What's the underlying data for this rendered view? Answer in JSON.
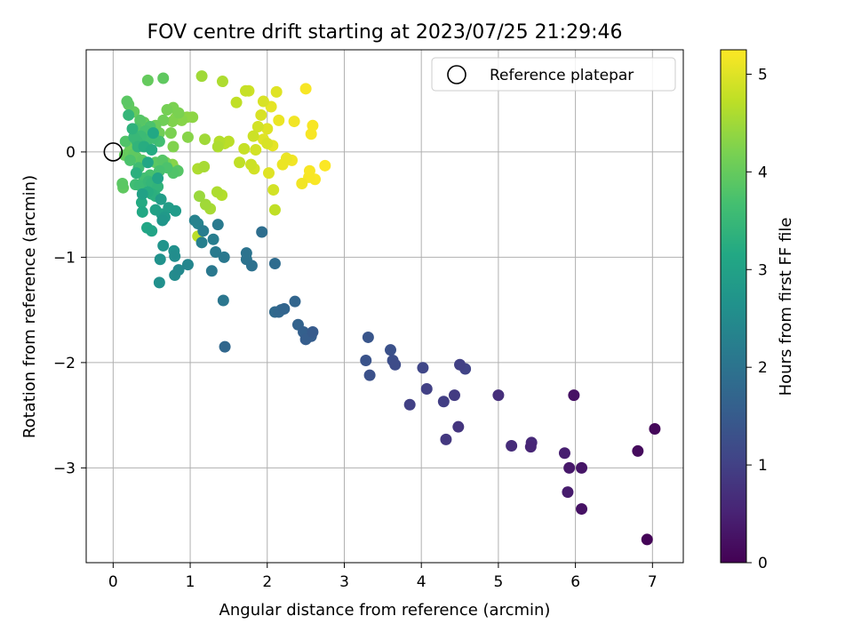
{
  "chart_data": {
    "type": "scatter",
    "title": "FOV centre drift starting at 2023/07/25 21:29:46",
    "xlabel": "Angular distance from reference (arcmin)",
    "ylabel": "Rotation from reference (arcmin)",
    "xlim": [
      -0.35,
      7.4
    ],
    "ylim": [
      -3.9,
      0.97
    ],
    "xticks": [
      0,
      1,
      2,
      3,
      4,
      5,
      6,
      7
    ],
    "yticks": [
      -3,
      -2,
      -1,
      0
    ],
    "grid": true,
    "legend": {
      "placement": "upper right",
      "entries": [
        "Reference platepar"
      ]
    },
    "colorbar": {
      "label": "Hours from first FF file",
      "range": [
        0,
        5.25
      ],
      "ticks": [
        0,
        1,
        2,
        3,
        4,
        5
      ],
      "colormap": "viridis"
    },
    "reference_point": {
      "x": 0,
      "y": 0
    },
    "points": [
      {
        "x": 6.93,
        "y": -3.68,
        "c": 0.05
      },
      {
        "x": 7.03,
        "y": -2.63,
        "c": 0.1
      },
      {
        "x": 6.81,
        "y": -2.84,
        "c": 0.15
      },
      {
        "x": 6.08,
        "y": -3.39,
        "c": 0.25
      },
      {
        "x": 6.08,
        "y": -3.0,
        "c": 0.3
      },
      {
        "x": 5.92,
        "y": -3.0,
        "c": 0.35
      },
      {
        "x": 5.9,
        "y": -3.23,
        "c": 0.4
      },
      {
        "x": 5.98,
        "y": -2.31,
        "c": 0.25
      },
      {
        "x": 5.86,
        "y": -2.86,
        "c": 0.45
      },
      {
        "x": 5.42,
        "y": -2.8,
        "c": 0.55
      },
      {
        "x": 5.43,
        "y": -2.76,
        "c": 0.6
      },
      {
        "x": 5.17,
        "y": -2.79,
        "c": 0.65
      },
      {
        "x": 5.0,
        "y": -2.31,
        "c": 0.7
      },
      {
        "x": 4.48,
        "y": -2.61,
        "c": 0.8
      },
      {
        "x": 4.32,
        "y": -2.73,
        "c": 0.85
      },
      {
        "x": 4.43,
        "y": -2.31,
        "c": 0.9
      },
      {
        "x": 4.29,
        "y": -2.37,
        "c": 0.95
      },
      {
        "x": 4.5,
        "y": -2.02,
        "c": 1.0
      },
      {
        "x": 4.57,
        "y": -2.06,
        "c": 1.05
      },
      {
        "x": 4.07,
        "y": -2.25,
        "c": 1.0
      },
      {
        "x": 4.02,
        "y": -2.05,
        "c": 1.1
      },
      {
        "x": 3.85,
        "y": -2.4,
        "c": 1.0
      },
      {
        "x": 3.66,
        "y": -2.02,
        "c": 1.2
      },
      {
        "x": 3.63,
        "y": -1.98,
        "c": 1.25
      },
      {
        "x": 3.6,
        "y": -1.88,
        "c": 1.3
      },
      {
        "x": 3.33,
        "y": -2.12,
        "c": 1.3
      },
      {
        "x": 3.28,
        "y": -1.98,
        "c": 1.35
      },
      {
        "x": 3.31,
        "y": -1.76,
        "c": 1.4
      },
      {
        "x": 2.59,
        "y": -1.71,
        "c": 1.5
      },
      {
        "x": 2.57,
        "y": -1.75,
        "c": 1.55
      },
      {
        "x": 2.5,
        "y": -1.78,
        "c": 1.55
      },
      {
        "x": 2.47,
        "y": -1.71,
        "c": 1.6
      },
      {
        "x": 2.4,
        "y": -1.64,
        "c": 1.65
      },
      {
        "x": 2.36,
        "y": -1.42,
        "c": 1.7
      },
      {
        "x": 2.22,
        "y": -1.49,
        "c": 1.7
      },
      {
        "x": 2.18,
        "y": -1.5,
        "c": 1.75
      },
      {
        "x": 2.15,
        "y": -1.52,
        "c": 1.75
      },
      {
        "x": 2.1,
        "y": -1.52,
        "c": 1.8
      },
      {
        "x": 1.45,
        "y": -1.85,
        "c": 1.75
      },
      {
        "x": 2.1,
        "y": -1.06,
        "c": 1.85
      },
      {
        "x": 1.93,
        "y": -0.76,
        "c": 1.9
      },
      {
        "x": 1.8,
        "y": -1.08,
        "c": 1.95
      },
      {
        "x": 1.73,
        "y": -1.02,
        "c": 2.0
      },
      {
        "x": 1.73,
        "y": -0.96,
        "c": 2.0
      },
      {
        "x": 1.43,
        "y": -1.41,
        "c": 2.05
      },
      {
        "x": 1.44,
        "y": -1.0,
        "c": 2.1
      },
      {
        "x": 1.28,
        "y": -1.13,
        "c": 2.1
      },
      {
        "x": 1.33,
        "y": -0.95,
        "c": 2.15
      },
      {
        "x": 1.36,
        "y": -0.69,
        "c": 2.15
      },
      {
        "x": 1.3,
        "y": -0.83,
        "c": 2.2
      },
      {
        "x": 1.17,
        "y": -0.75,
        "c": 2.2
      },
      {
        "x": 1.15,
        "y": -0.86,
        "c": 2.25
      },
      {
        "x": 1.1,
        "y": -0.68,
        "c": 2.3
      },
      {
        "x": 1.06,
        "y": -0.65,
        "c": 2.3
      },
      {
        "x": 0.97,
        "y": -1.07,
        "c": 2.4
      },
      {
        "x": 0.85,
        "y": -1.12,
        "c": 2.45
      },
      {
        "x": 0.8,
        "y": -1.17,
        "c": 2.5
      },
      {
        "x": 0.8,
        "y": -0.99,
        "c": 2.55
      },
      {
        "x": 0.79,
        "y": -0.94,
        "c": 2.6
      },
      {
        "x": 0.6,
        "y": -1.24,
        "c": 2.6
      },
      {
        "x": 0.61,
        "y": -1.02,
        "c": 2.65
      },
      {
        "x": 0.65,
        "y": -0.89,
        "c": 2.7
      },
      {
        "x": 0.64,
        "y": -0.65,
        "c": 2.75
      },
      {
        "x": 0.67,
        "y": -0.62,
        "c": 2.8
      },
      {
        "x": 0.81,
        "y": -0.56,
        "c": 2.85
      },
      {
        "x": 0.72,
        "y": -0.53,
        "c": 2.9
      },
      {
        "x": 0.63,
        "y": -0.59,
        "c": 2.95
      },
      {
        "x": 0.55,
        "y": -0.55,
        "c": 3.0
      },
      {
        "x": 0.5,
        "y": -0.75,
        "c": 3.05
      },
      {
        "x": 0.44,
        "y": -0.72,
        "c": 3.1
      },
      {
        "x": 0.38,
        "y": -0.57,
        "c": 3.15
      },
      {
        "x": 0.37,
        "y": -0.48,
        "c": 3.2
      },
      {
        "x": 0.45,
        "y": -0.38,
        "c": 3.25
      },
      {
        "x": 0.5,
        "y": -0.4,
        "c": 3.3
      },
      {
        "x": 0.55,
        "y": -0.42,
        "c": 3.35
      },
      {
        "x": 0.58,
        "y": -0.33,
        "c": 3.4
      },
      {
        "x": 0.5,
        "y": -0.3,
        "c": 3.45
      },
      {
        "x": 0.46,
        "y": -0.28,
        "c": 3.5
      },
      {
        "x": 0.35,
        "y": -0.32,
        "c": 3.55
      },
      {
        "x": 0.29,
        "y": -0.31,
        "c": 3.6
      },
      {
        "x": 0.4,
        "y": -0.25,
        "c": 3.65
      },
      {
        "x": 0.48,
        "y": -0.22,
        "c": 3.7
      },
      {
        "x": 0.6,
        "y": -0.18,
        "c": 3.7
      },
      {
        "x": 0.7,
        "y": -0.15,
        "c": 3.75
      },
      {
        "x": 0.78,
        "y": -0.2,
        "c": 3.8
      },
      {
        "x": 0.84,
        "y": -0.18,
        "c": 3.85
      },
      {
        "x": 0.64,
        "y": -0.08,
        "c": 3.85
      },
      {
        "x": 0.55,
        "y": -0.1,
        "c": 3.9
      },
      {
        "x": 0.38,
        "y": -0.08,
        "c": 3.9
      },
      {
        "x": 0.3,
        "y": -0.05,
        "c": 3.95
      },
      {
        "x": 0.27,
        "y": -0.02,
        "c": 3.95
      },
      {
        "x": 0.2,
        "y": -0.04,
        "c": 4.0
      },
      {
        "x": 0.15,
        "y": -0.03,
        "c": 4.0
      },
      {
        "x": 0.12,
        "y": -0.3,
        "c": 3.9
      },
      {
        "x": 0.13,
        "y": -0.34,
        "c": 3.95
      },
      {
        "x": 0.22,
        "y": 0.02,
        "c": 4.05
      },
      {
        "x": 0.28,
        "y": 0.05,
        "c": 4.1
      },
      {
        "x": 0.31,
        "y": 0.1,
        "c": 3.5
      },
      {
        "x": 0.36,
        "y": 0.15,
        "c": 3.55
      },
      {
        "x": 0.46,
        "y": 0.12,
        "c": 3.6
      },
      {
        "x": 0.53,
        "y": 0.13,
        "c": 3.6
      },
      {
        "x": 0.6,
        "y": 0.1,
        "c": 3.65
      },
      {
        "x": 0.42,
        "y": 0.2,
        "c": 3.7
      },
      {
        "x": 0.48,
        "y": 0.24,
        "c": 3.75
      },
      {
        "x": 0.3,
        "y": 0.22,
        "c": 3.8
      },
      {
        "x": 0.27,
        "y": 0.14,
        "c": 3.5
      },
      {
        "x": 0.32,
        "y": 0.05,
        "c": 3.4
      },
      {
        "x": 0.35,
        "y": 0.3,
        "c": 3.85
      },
      {
        "x": 0.18,
        "y": 0.48,
        "c": 3.9
      },
      {
        "x": 0.2,
        "y": 0.45,
        "c": 3.95
      },
      {
        "x": 0.27,
        "y": 0.38,
        "c": 4.0
      },
      {
        "x": 0.4,
        "y": 0.28,
        "c": 4.0
      },
      {
        "x": 0.55,
        "y": 0.25,
        "c": 4.05
      },
      {
        "x": 0.6,
        "y": 0.18,
        "c": 4.1
      },
      {
        "x": 0.65,
        "y": 0.3,
        "c": 4.1
      },
      {
        "x": 0.7,
        "y": 0.4,
        "c": 4.15
      },
      {
        "x": 0.78,
        "y": 0.42,
        "c": 4.2
      },
      {
        "x": 0.85,
        "y": 0.37,
        "c": 4.2
      },
      {
        "x": 0.77,
        "y": 0.29,
        "c": 4.25
      },
      {
        "x": 0.81,
        "y": 0.32,
        "c": 4.3
      },
      {
        "x": 0.89,
        "y": 0.3,
        "c": 4.3
      },
      {
        "x": 0.96,
        "y": 0.33,
        "c": 4.35
      },
      {
        "x": 1.03,
        "y": 0.33,
        "c": 4.35
      },
      {
        "x": 0.75,
        "y": 0.18,
        "c": 4.2
      },
      {
        "x": 0.78,
        "y": 0.05,
        "c": 4.25
      },
      {
        "x": 0.97,
        "y": 0.14,
        "c": 4.3
      },
      {
        "x": 0.45,
        "y": 0.68,
        "c": 4.0
      },
      {
        "x": 0.65,
        "y": 0.7,
        "c": 3.95
      },
      {
        "x": 0.77,
        "y": -0.12,
        "c": 4.3
      },
      {
        "x": 0.68,
        "y": -0.1,
        "c": 4.2
      },
      {
        "x": 0.82,
        "y": -0.17,
        "c": 4.35
      },
      {
        "x": 1.15,
        "y": 0.72,
        "c": 4.5
      },
      {
        "x": 1.19,
        "y": 0.12,
        "c": 4.5
      },
      {
        "x": 1.18,
        "y": -0.14,
        "c": 4.55
      },
      {
        "x": 1.1,
        "y": -0.16,
        "c": 4.6
      },
      {
        "x": 1.12,
        "y": -0.42,
        "c": 4.45
      },
      {
        "x": 1.2,
        "y": -0.5,
        "c": 4.5
      },
      {
        "x": 1.26,
        "y": -0.54,
        "c": 4.55
      },
      {
        "x": 1.35,
        "y": -0.38,
        "c": 4.6
      },
      {
        "x": 1.41,
        "y": -0.41,
        "c": 4.65
      },
      {
        "x": 1.1,
        "y": -0.8,
        "c": 4.7
      },
      {
        "x": 1.36,
        "y": 0.05,
        "c": 4.6
      },
      {
        "x": 1.38,
        "y": 0.1,
        "c": 4.65
      },
      {
        "x": 1.45,
        "y": 0.08,
        "c": 4.7
      },
      {
        "x": 1.5,
        "y": 0.1,
        "c": 4.7
      },
      {
        "x": 1.42,
        "y": 0.67,
        "c": 4.6
      },
      {
        "x": 1.6,
        "y": 0.47,
        "c": 4.75
      },
      {
        "x": 1.64,
        "y": -0.1,
        "c": 4.75
      },
      {
        "x": 1.7,
        "y": 0.03,
        "c": 4.8
      },
      {
        "x": 1.72,
        "y": 0.58,
        "c": 4.8
      },
      {
        "x": 1.76,
        "y": 0.58,
        "c": 4.85
      },
      {
        "x": 1.79,
        "y": -0.12,
        "c": 4.85
      },
      {
        "x": 1.83,
        "y": -0.16,
        "c": 4.9
      },
      {
        "x": 1.82,
        "y": 0.15,
        "c": 4.85
      },
      {
        "x": 1.85,
        "y": 0.02,
        "c": 4.9
      },
      {
        "x": 1.88,
        "y": 0.24,
        "c": 4.9
      },
      {
        "x": 1.92,
        "y": 0.35,
        "c": 4.95
      },
      {
        "x": 1.95,
        "y": 0.48,
        "c": 4.95
      },
      {
        "x": 1.95,
        "y": 0.12,
        "c": 5.0
      },
      {
        "x": 2.0,
        "y": 0.22,
        "c": 5.0
      },
      {
        "x": 2.02,
        "y": -0.2,
        "c": 5.0
      },
      {
        "x": 2.05,
        "y": 0.43,
        "c": 5.05
      },
      {
        "x": 2.07,
        "y": 0.06,
        "c": 5.05
      },
      {
        "x": 2.08,
        "y": -0.36,
        "c": 4.9
      },
      {
        "x": 2.1,
        "y": -0.55,
        "c": 4.75
      },
      {
        "x": 2.12,
        "y": 0.57,
        "c": 5.0
      },
      {
        "x": 2.15,
        "y": 0.3,
        "c": 5.1
      },
      {
        "x": 2.2,
        "y": -0.12,
        "c": 5.1
      },
      {
        "x": 2.25,
        "y": -0.06,
        "c": 5.1
      },
      {
        "x": 2.32,
        "y": -0.08,
        "c": 5.15
      },
      {
        "x": 2.35,
        "y": 0.29,
        "c": 5.15
      },
      {
        "x": 2.45,
        "y": -0.3,
        "c": 5.15
      },
      {
        "x": 2.5,
        "y": 0.6,
        "c": 5.2
      },
      {
        "x": 2.54,
        "y": -0.24,
        "c": 5.2
      },
      {
        "x": 2.57,
        "y": 0.17,
        "c": 5.2
      },
      {
        "x": 2.59,
        "y": 0.25,
        "c": 5.2
      },
      {
        "x": 2.62,
        "y": -0.26,
        "c": 5.22
      },
      {
        "x": 2.75,
        "y": -0.13,
        "c": 5.23
      },
      {
        "x": 2.55,
        "y": -0.18,
        "c": 5.2
      },
      {
        "x": 2.0,
        "y": 0.08,
        "c": 4.95
      },
      {
        "x": 0.2,
        "y": 0.35,
        "c": 3.45
      },
      {
        "x": 0.25,
        "y": 0.22,
        "c": 3.35
      },
      {
        "x": 0.3,
        "y": -0.2,
        "c": 3.3
      },
      {
        "x": 0.4,
        "y": 0.05,
        "c": 3.25
      },
      {
        "x": 0.5,
        "y": 0.02,
        "c": 3.2
      },
      {
        "x": 0.52,
        "y": 0.18,
        "c": 3.15
      },
      {
        "x": 0.45,
        "y": -0.1,
        "c": 3.1
      },
      {
        "x": 0.58,
        "y": -0.25,
        "c": 3.05
      },
      {
        "x": 0.38,
        "y": -0.4,
        "c": 3.0
      },
      {
        "x": 0.62,
        "y": -0.45,
        "c": 2.9
      },
      {
        "x": 0.33,
        "y": -0.15,
        "c": 3.6
      },
      {
        "x": 0.16,
        "y": 0.1,
        "c": 3.8
      },
      {
        "x": 0.22,
        "y": -0.08,
        "c": 3.75
      }
    ]
  }
}
